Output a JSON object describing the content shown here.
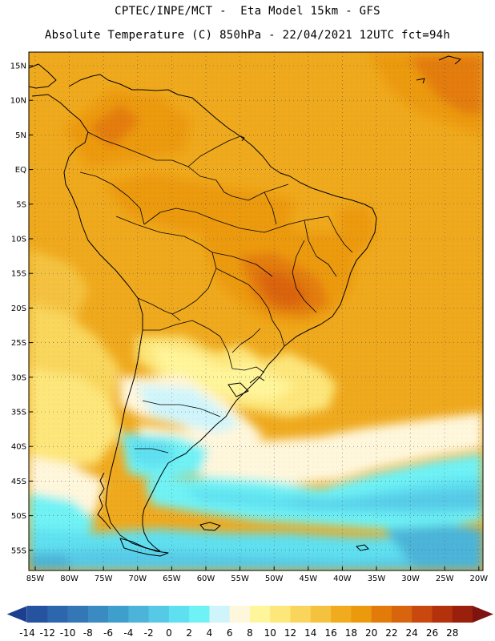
{
  "header": {
    "line1": "CPTEC/INPE/MCT -  Eta Model 15km - GFS",
    "line2": "Absolute Temperature (C) 850hPa - 22/04/2021 12UTC fct=94h"
  },
  "map": {
    "lat_labels": [
      "15N",
      "10N",
      "5N",
      "EQ",
      "5S",
      "10S",
      "15S",
      "20S",
      "25S",
      "30S",
      "35S",
      "40S",
      "45S",
      "50S",
      "55S"
    ],
    "lon_labels": [
      "85W",
      "80W",
      "75W",
      "70W",
      "65W",
      "60W",
      "55W",
      "50W",
      "45W",
      "40W",
      "35W",
      "30W",
      "25W",
      "20W"
    ]
  },
  "colorbar": {
    "colors": [
      "#1d3f8f",
      "#25539f",
      "#2c66ad",
      "#3377b6",
      "#3a8bc2",
      "#3f9fcc",
      "#4bb4d8",
      "#56c9e6",
      "#5fe0f0",
      "#6ff2f5",
      "#cff5fb",
      "#fff7dc",
      "#fff59a",
      "#fde67a",
      "#f9d65b",
      "#f4c23f",
      "#f0ab1e",
      "#ec9a0d",
      "#e37b0b",
      "#d9640e",
      "#c8480d",
      "#b3320c",
      "#9a1f0c",
      "#7e1410"
    ],
    "labels": [
      "-14",
      "-12",
      "-10",
      "-8",
      "-6",
      "-4",
      "-2",
      "0",
      "2",
      "4",
      "6",
      "8",
      "10",
      "12",
      "14",
      "16",
      "18",
      "20",
      "22",
      "24",
      "26",
      "28"
    ]
  }
}
